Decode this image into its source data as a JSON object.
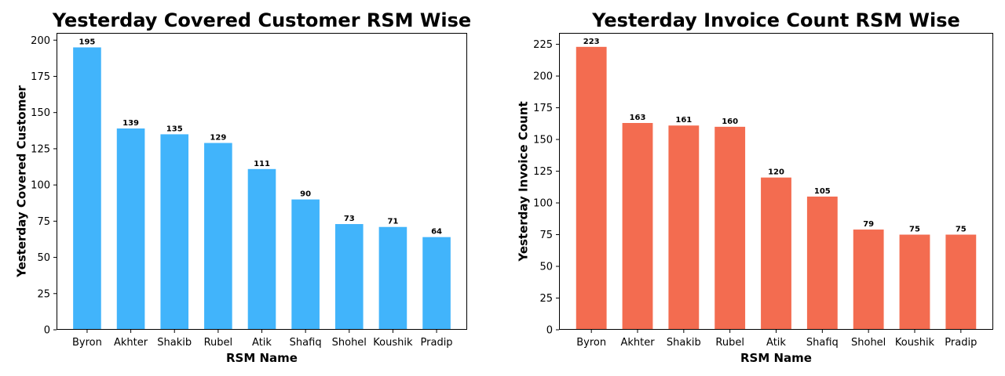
{
  "chart_data": [
    {
      "type": "bar",
      "title": "Yesterday Covered Customer RSM Wise",
      "xlabel": "RSM Name",
      "ylabel": "Yesterday Covered Customer",
      "categories": [
        "Byron",
        "Akhter",
        "Shakib",
        "Rubel",
        "Atik",
        "Shafiq",
        "Shohel",
        "Koushik",
        "Pradip"
      ],
      "values": [
        195,
        139,
        135,
        129,
        111,
        90,
        73,
        71,
        64
      ],
      "ylim": [
        0,
        205
      ],
      "yticks": [
        0,
        25,
        50,
        75,
        100,
        125,
        150,
        175,
        200
      ],
      "color": "#41b4fb",
      "grid": false
    },
    {
      "type": "bar",
      "title": "Yesterday Invoice Count RSM Wise",
      "xlabel": "RSM Name",
      "ylabel": "Yesterday Invoice Count",
      "categories": [
        "Byron",
        "Akhter",
        "Shakib",
        "Rubel",
        "Atik",
        "Shafiq",
        "Shohel",
        "Koushik",
        "Pradip"
      ],
      "values": [
        223,
        163,
        161,
        160,
        120,
        105,
        79,
        75,
        75
      ],
      "ylim": [
        0,
        234
      ],
      "yticks": [
        0,
        25,
        50,
        75,
        100,
        125,
        150,
        175,
        200,
        225
      ],
      "color": "#f36c50",
      "grid": false
    }
  ]
}
